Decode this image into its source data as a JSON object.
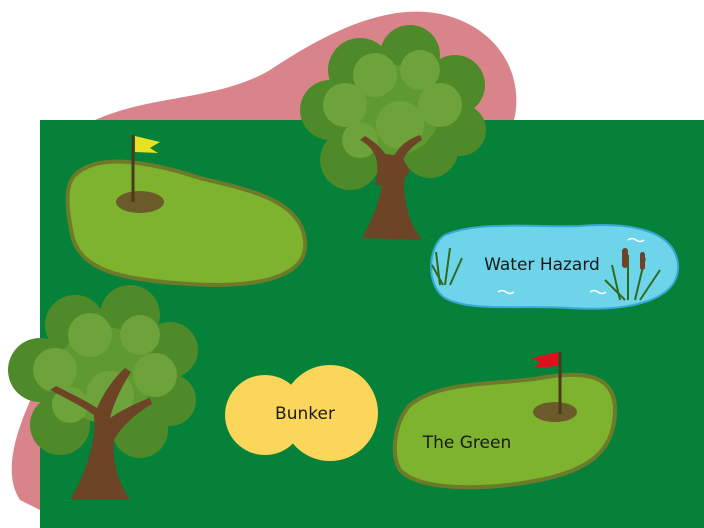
{
  "labels": {
    "water_hazard": "Water Hazard",
    "bunker": "Bunker",
    "green": "The Green"
  }
}
